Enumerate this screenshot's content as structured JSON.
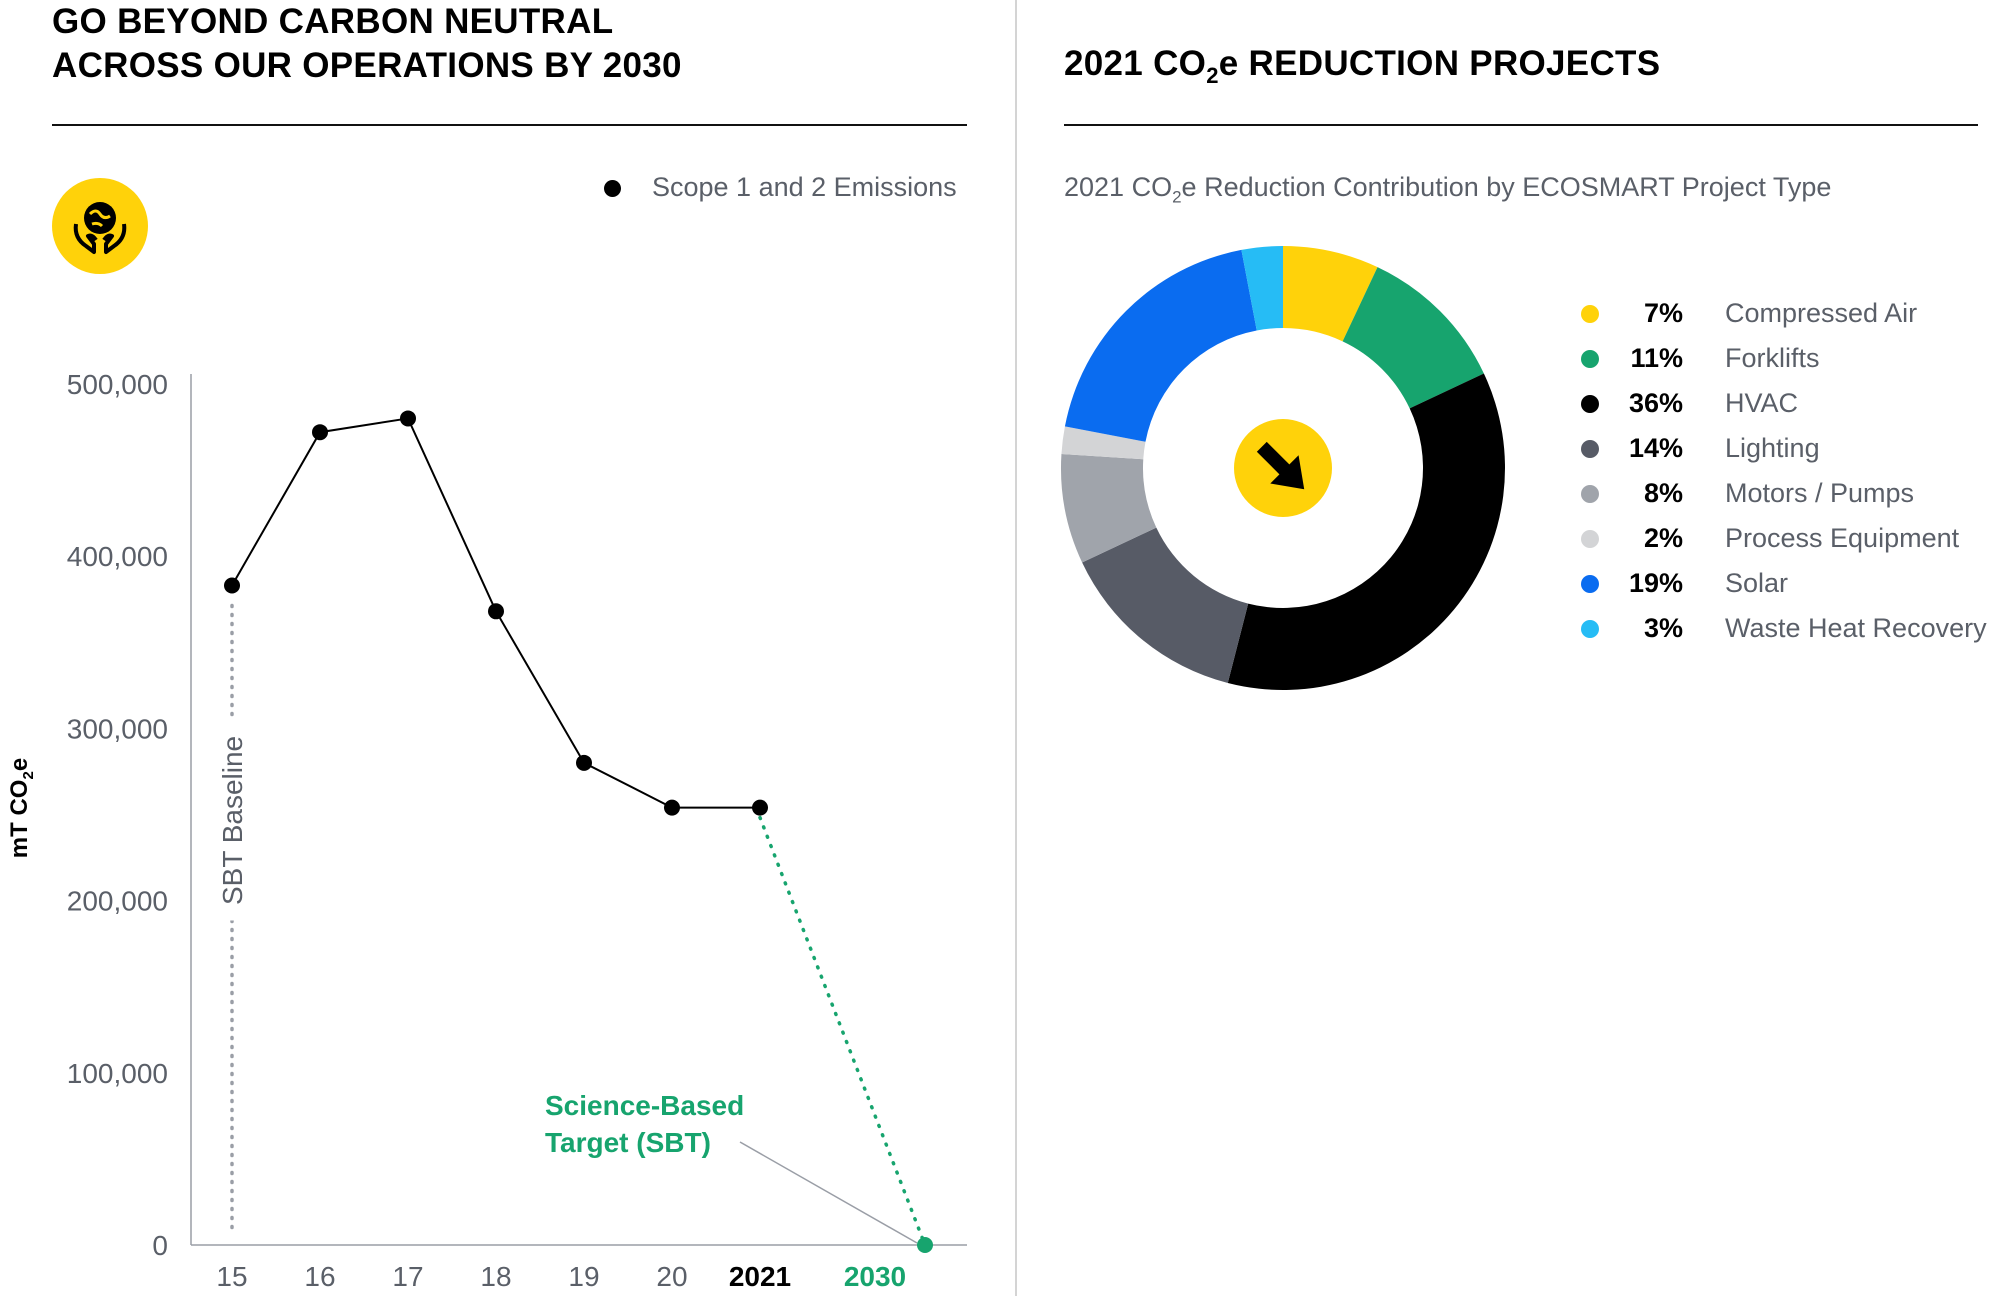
{
  "left_panel": {
    "title_line1": "GO BEYOND CARBON NEUTRAL",
    "title_line2": "ACROSS OUR OPERATIONS BY 2030",
    "icon": "globe-in-hands-icon",
    "legend_label": "Scope 1 and 2 Emissions"
  },
  "right_panel": {
    "title_prefix": "2021 CO",
    "title_sub": "2",
    "title_suffix": "e REDUCTION PROJECTS",
    "subtitle_prefix": "2021 CO",
    "subtitle_sub": "2",
    "subtitle_suffix": "e Reduction Contribution by ECOSMART Project Type",
    "center_icon": "arrow-down-right-icon"
  },
  "colors": {
    "yellow": "#FFD20A",
    "green": "#17A46E",
    "black": "#000000",
    "dark_gray": "#575B66",
    "mid_gray": "#A0A4AB",
    "light_gray": "#D3D4D6",
    "blue": "#0A6CF0",
    "light_blue": "#26BCF5",
    "axis_text": "#5A5F68"
  },
  "chart_data": [
    {
      "type": "line",
      "ylabel_prefix": "mT CO",
      "ylabel_sub": "2",
      "ylabel_suffix": "e",
      "ylim": [
        0,
        500000
      ],
      "yticks": [
        0,
        100000,
        200000,
        300000,
        400000,
        500000
      ],
      "ytick_labels": [
        "0",
        "100,000",
        "200,000",
        "300,000",
        "400,000",
        "500,000"
      ],
      "categories": [
        "15",
        "16",
        "17",
        "18",
        "19",
        "20",
        "2021"
      ],
      "series": [
        {
          "name": "Scope 1 and 2 Emissions",
          "values": [
            383000,
            472000,
            480000,
            368000,
            280000,
            254000,
            254000
          ]
        }
      ],
      "target": {
        "category": "2030",
        "value": 0,
        "label_line1": "Science-Based",
        "label_line2": "Target (SBT)"
      },
      "baseline_label": "SBT Baseline",
      "grid": false
    },
    {
      "type": "pie",
      "donut": true,
      "slices": [
        {
          "label": "Compressed Air",
          "pct": "7%",
          "value": 7,
          "color": "#FFD20A"
        },
        {
          "label": "Forklifts",
          "pct": "11%",
          "value": 11,
          "color": "#17A46E"
        },
        {
          "label": "HVAC",
          "pct": "36%",
          "value": 36,
          "color": "#000000"
        },
        {
          "label": "Lighting",
          "pct": "14%",
          "value": 14,
          "color": "#575B66"
        },
        {
          "label": "Motors / Pumps",
          "pct": "8%",
          "value": 8,
          "color": "#A0A4AB"
        },
        {
          "label": "Process Equipment",
          "pct": "2%",
          "value": 2,
          "color": "#D3D4D6"
        },
        {
          "label": "Solar",
          "pct": "19%",
          "value": 19,
          "color": "#0A6CF0"
        },
        {
          "label": "Waste Heat Recovery",
          "pct": "3%",
          "value": 3,
          "color": "#26BCF5"
        }
      ],
      "legend_position": "right"
    }
  ]
}
